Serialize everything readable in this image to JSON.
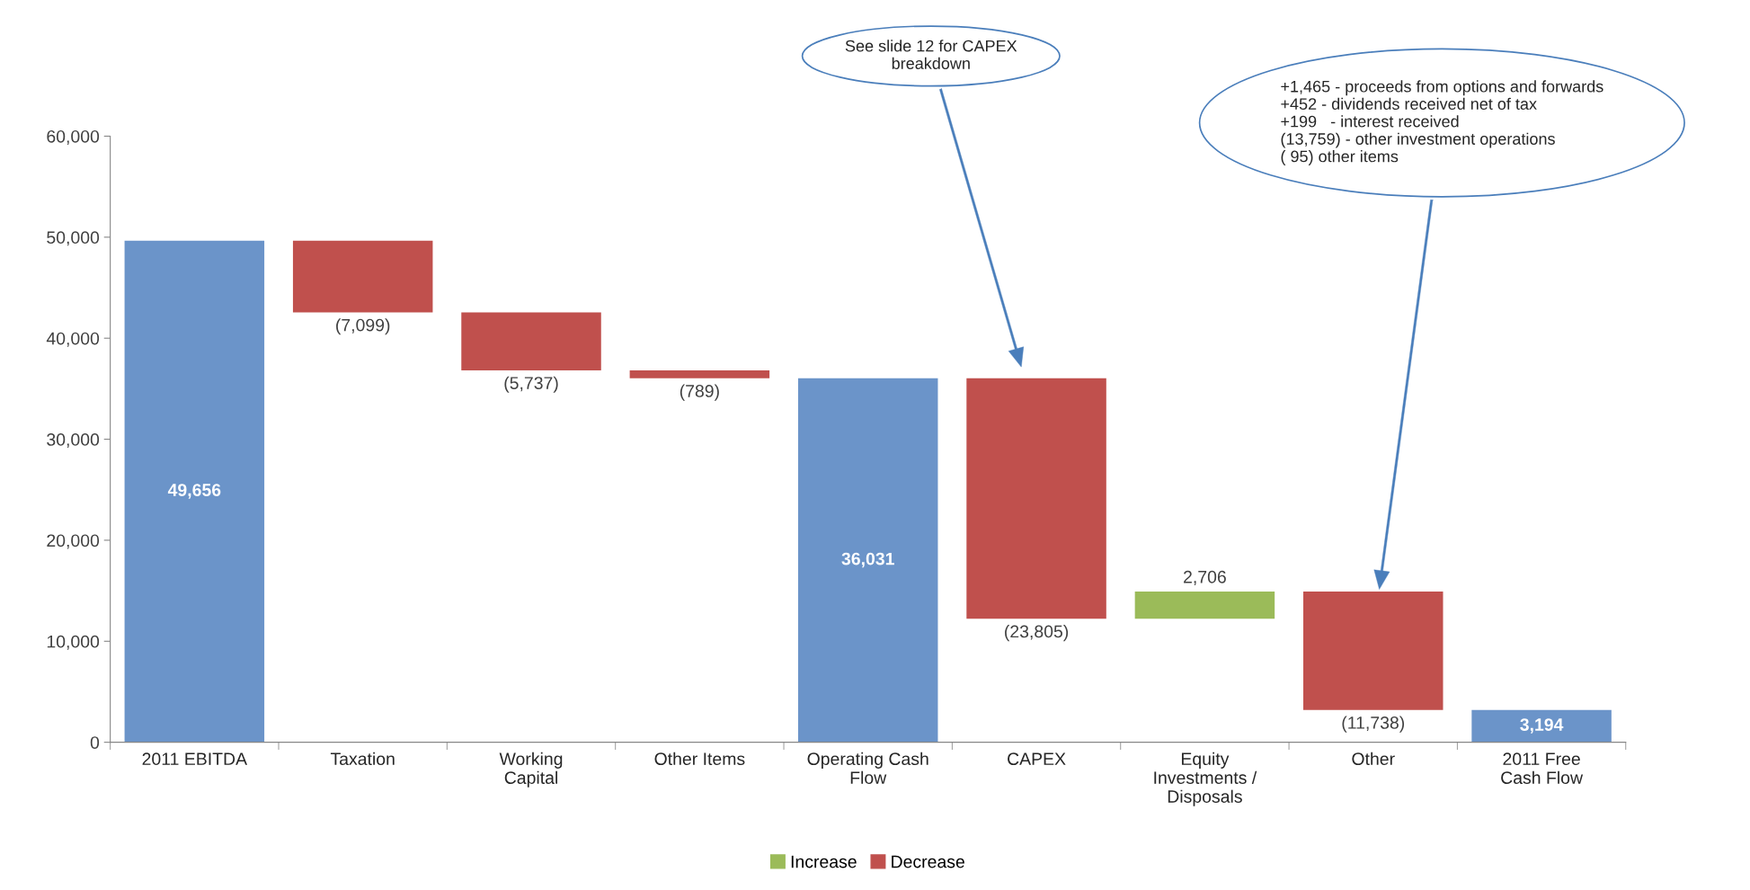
{
  "chart_data": {
    "type": "bar",
    "categories": [
      "2011 EBITDA",
      "Taxation",
      "Working\nCapital",
      "Other Items",
      "Operating Cash\nFlow",
      "CAPEX",
      "Equity\nInvestments /\nDisposals",
      "Other",
      "2011 Free\nCash Flow"
    ],
    "series": [
      {
        "color": "#6b94c9",
        "base": [
          0,
          null,
          null,
          null,
          0,
          null,
          null,
          null,
          0
        ],
        "values": [
          49656,
          null,
          null,
          null,
          36031,
          null,
          null,
          null,
          3194
        ],
        "value_labels": [
          "49,656",
          null,
          null,
          null,
          "36,031",
          null,
          null,
          null,
          "3,194"
        ]
      },
      {
        "name": "Increase",
        "color": "#9bbb59",
        "base": [
          null,
          null,
          null,
          null,
          null,
          null,
          12226,
          null,
          null
        ],
        "values": [
          null,
          null,
          null,
          null,
          null,
          null,
          2706,
          null,
          null
        ],
        "value_labels": [
          null,
          null,
          null,
          null,
          null,
          null,
          "2,706",
          null,
          null
        ]
      },
      {
        "name": "Decrease",
        "color": "#c0504d",
        "base": [
          null,
          49656,
          42557,
          36820,
          null,
          36031,
          null,
          14932,
          null
        ],
        "values": [
          null,
          -7099,
          -5737,
          -789,
          null,
          -23805,
          null,
          -11738,
          null
        ],
        "value_labels": [
          null,
          "(7,099)",
          "(5,737)",
          "(789)",
          null,
          "(23,805)",
          null,
          "(11,738)",
          null
        ]
      }
    ],
    "ylim": [
      0,
      60000
    ],
    "yticks": [
      {
        "value": 0,
        "label": "0"
      },
      {
        "value": 10000,
        "label": "10,000"
      },
      {
        "value": 20000,
        "label": "20,000"
      },
      {
        "value": 30000,
        "label": "30,000"
      },
      {
        "value": 40000,
        "label": "40,000"
      },
      {
        "value": 50000,
        "label": "50,000"
      },
      {
        "value": 60000,
        "label": "60,000"
      }
    ],
    "grid": false,
    "legend": "bottom",
    "annotations": [
      "See slide 12 for CAPEX\nbreakdown",
      "+1,465 - proceeds from options and forwards\n+452 - dividends received net of tax\n+199   - interest received\n(13,759) - other investment operations\n( 95) other items"
    ]
  }
}
